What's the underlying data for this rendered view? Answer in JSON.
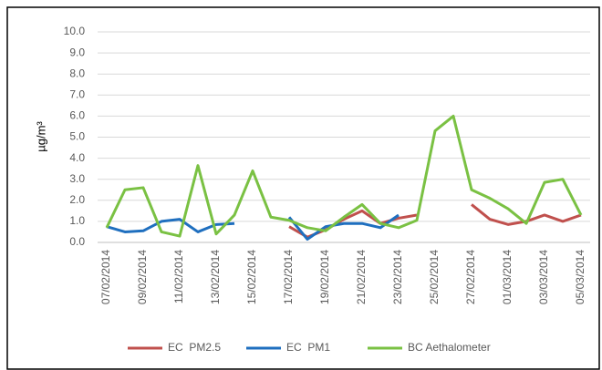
{
  "chart_data": {
    "type": "line",
    "ylabel": "µg/m³",
    "categories": [
      "07/02/2014",
      null,
      "09/02/2014",
      null,
      "11/02/2014",
      null,
      "13/02/2014",
      null,
      "15/02/2014",
      null,
      "17/02/2014",
      null,
      "19/02/2014",
      null,
      "21/02/2014",
      null,
      "23/02/2014",
      null,
      "25/02/2014",
      null,
      "27/02/2014",
      null,
      "01/03/2014",
      null,
      "03/03/2014",
      null,
      "05/03/2014"
    ],
    "series": [
      {
        "name": "EC  PM2.5",
        "color": "#c0504d",
        "values": [
          null,
          null,
          null,
          null,
          null,
          null,
          null,
          null,
          null,
          null,
          0.75,
          0.25,
          0.6,
          1.1,
          1.5,
          0.9,
          1.15,
          1.3,
          null,
          null,
          1.8,
          1.1,
          0.85,
          1.0,
          1.3,
          1.0,
          1.3
        ]
      },
      {
        "name": "EC  PM1",
        "color": "#1f6fbf",
        "values": [
          0.75,
          0.5,
          0.55,
          1.0,
          1.1,
          0.5,
          0.85,
          0.9,
          null,
          null,
          1.2,
          0.15,
          0.75,
          0.9,
          0.9,
          0.7,
          1.3,
          null,
          null,
          null,
          null,
          null,
          null,
          null,
          null,
          null,
          null
        ]
      },
      {
        "name": "BC Aethalometer",
        "color": "#7ac143",
        "values": [
          0.7,
          2.5,
          2.6,
          0.5,
          0.3,
          3.65,
          0.4,
          1.3,
          3.4,
          1.2,
          1.05,
          0.7,
          0.55,
          1.2,
          1.8,
          0.9,
          0.7,
          1.05,
          5.3,
          6.0,
          2.5,
          2.1,
          1.6,
          0.9,
          2.85,
          3.0,
          1.3
        ]
      }
    ],
    "ylim": [
      0,
      10
    ],
    "yticks": [
      {
        "value": 0,
        "label": "0.0"
      },
      {
        "value": 1,
        "label": "1.0"
      },
      {
        "value": 2,
        "label": "2.0"
      },
      {
        "value": 3,
        "label": "3.0"
      },
      {
        "value": 4,
        "label": "4.0"
      },
      {
        "value": 5,
        "label": "5.0"
      },
      {
        "value": 6,
        "label": "6.0"
      },
      {
        "value": 7,
        "label": "7.0"
      },
      {
        "value": 8,
        "label": "8.0"
      },
      {
        "value": 9,
        "label": "9.0"
      },
      {
        "value": 10,
        "label": "10.0"
      }
    ],
    "grid": true,
    "legend": "bottom"
  }
}
